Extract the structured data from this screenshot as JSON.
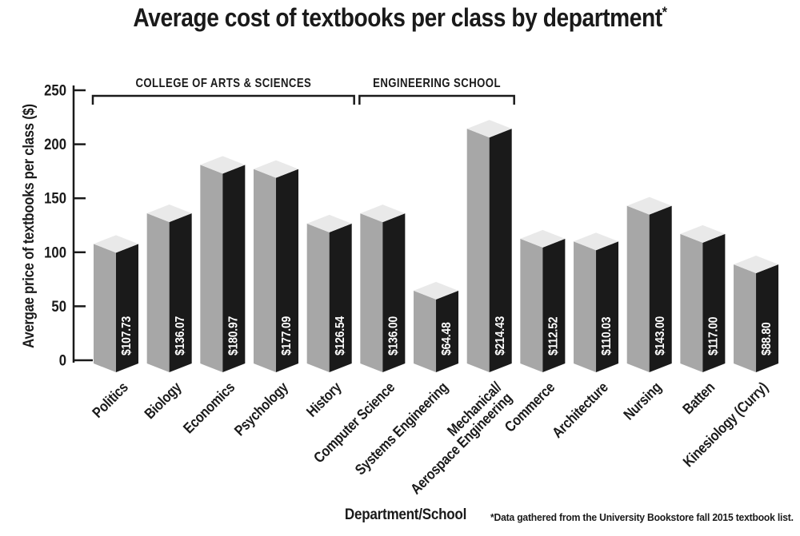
{
  "header": {
    "title": "Average cost of textbooks per class by department",
    "asterisk": "*"
  },
  "chart_data": {
    "type": "bar",
    "title": "Average cost of textbooks per class by department*",
    "xlabel": "Department/School",
    "ylabel": "Avergae price of textbooks per class ($)",
    "footnote": "*Data gathered from the University Bookstore fall 2015 textbook list.",
    "ylim": [
      0,
      250
    ],
    "yticks": [
      0,
      50,
      100,
      150,
      200,
      250
    ],
    "grid": false,
    "legend": "none",
    "categories": [
      "Politics",
      "Biology",
      "Economics",
      "Psychology",
      "History",
      "Computer Science",
      "Systems Engineering",
      "Mechanical/\nAerospace Engineering",
      "Commerce",
      "Architecture",
      "Nursing",
      "Batten",
      "Kinesiology (Curry)"
    ],
    "values": [
      107.73,
      136.07,
      180.97,
      177.09,
      126.54,
      136.0,
      64.48,
      214.43,
      112.52,
      110.03,
      143.0,
      117.0,
      88.8
    ],
    "bar_value_labels": [
      "$107.73",
      "$136.07",
      "$180.97",
      "$177.09",
      "$126.54",
      "$136.00",
      "$64.48",
      "$214.43",
      "$112.52",
      "$110.03",
      "$143.00",
      "$117.00",
      "$88.80"
    ],
    "groups": [
      {
        "label": "COLLEGE OF ARTS & SCIENCES",
        "start_index": 0,
        "end_index": 4
      },
      {
        "label": "ENGINEERING SCHOOL",
        "start_index": 5,
        "end_index": 7
      }
    ],
    "colors": {
      "bar_front": "#a7a7a7",
      "bar_side": "#1a1a1a",
      "bar_top": "#e9e9e9",
      "bar_label_text": "#ffffff",
      "axis": "#1a1a1a",
      "text": "#1a1a1a",
      "background": "#ffffff"
    }
  }
}
